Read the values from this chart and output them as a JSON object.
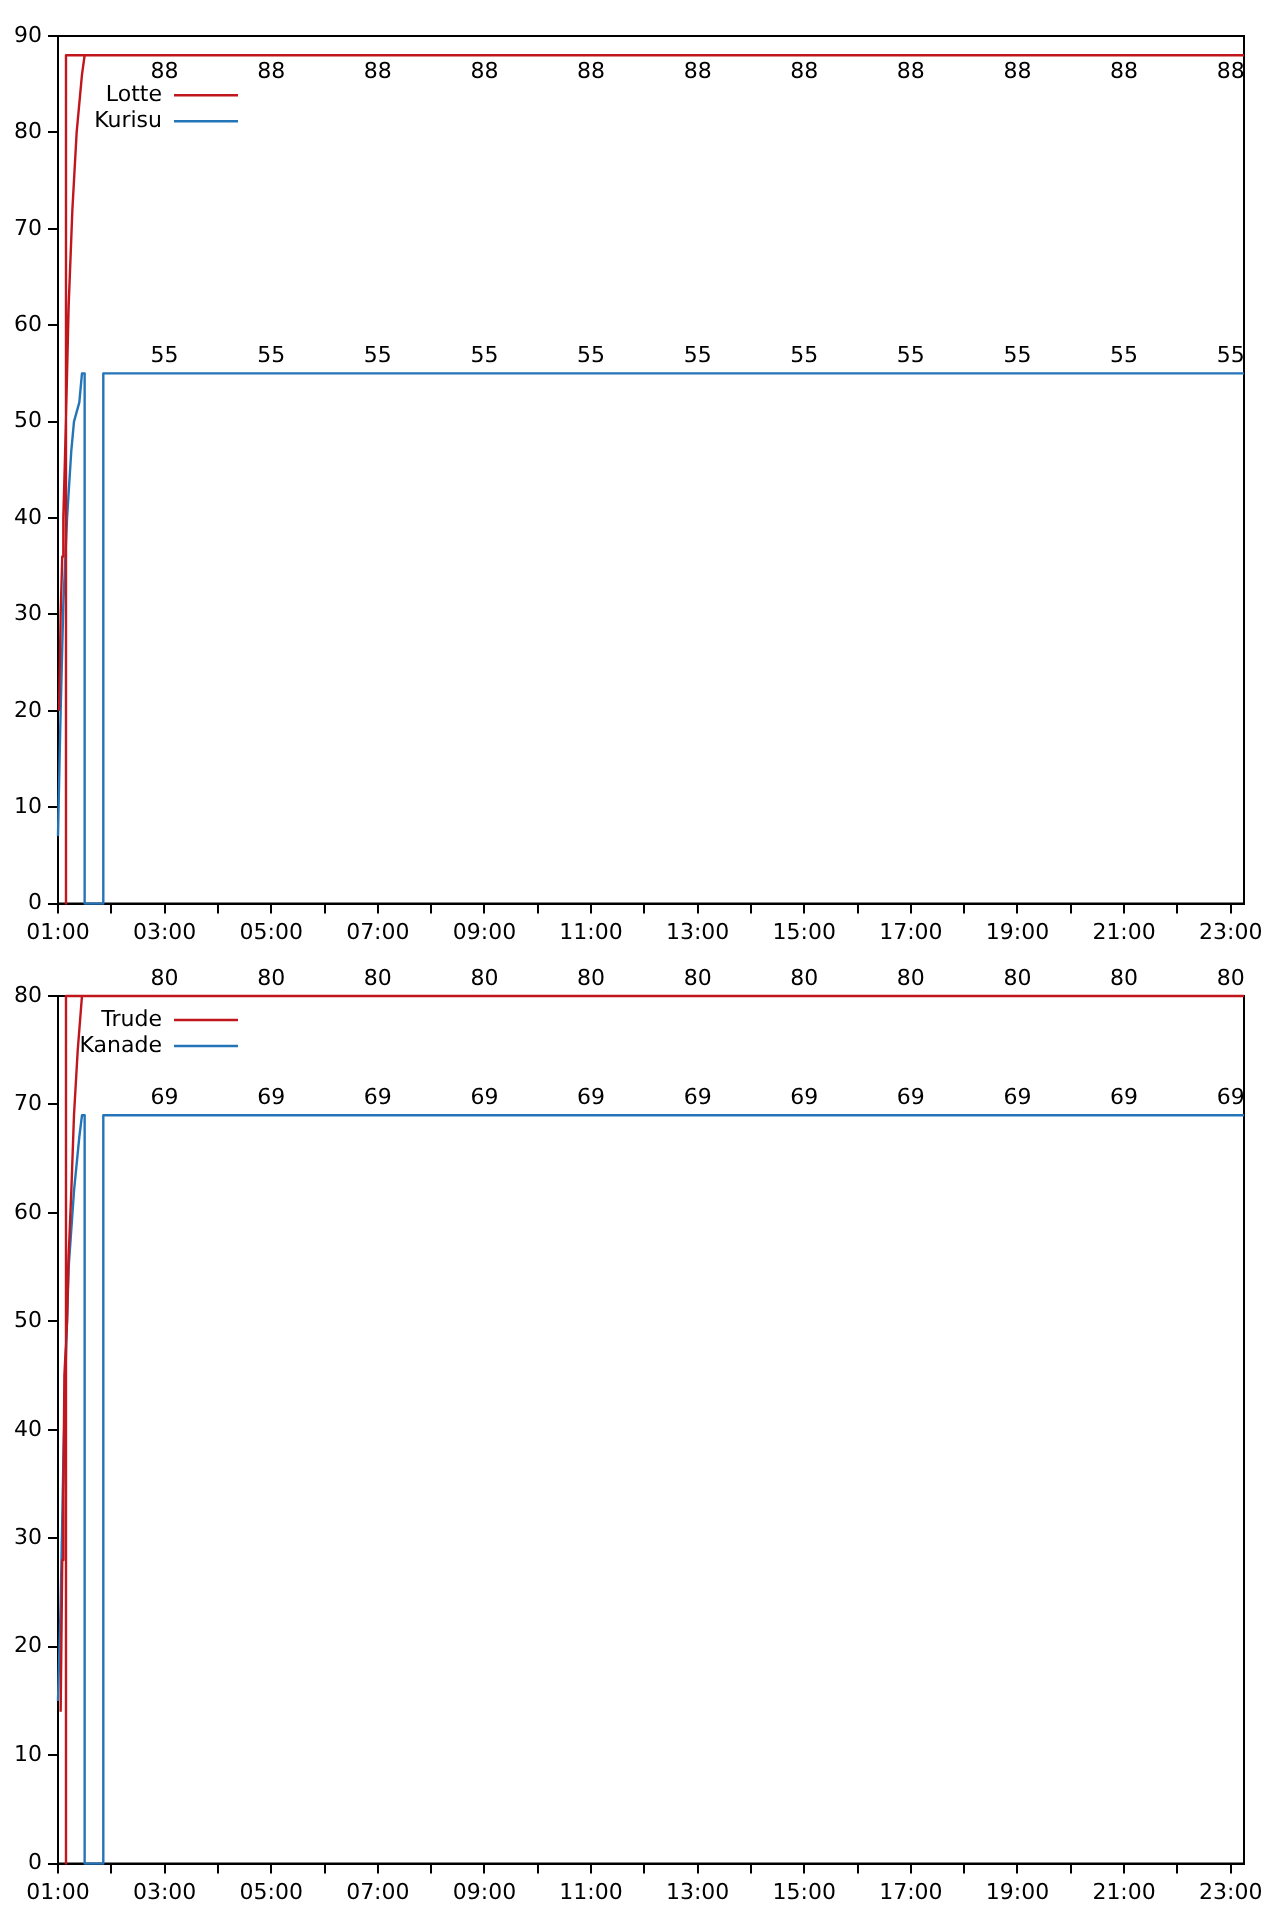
{
  "chart_data": [
    {
      "type": "line",
      "legend": "top left",
      "xlim": [
        1,
        23.25
      ],
      "ylim": [
        0,
        90
      ],
      "xticks": [
        {
          "value": 1,
          "label": "01:00"
        },
        {
          "value": 2,
          "label": null
        },
        {
          "value": 3,
          "label": "03:00"
        },
        {
          "value": 4,
          "label": null
        },
        {
          "value": 5,
          "label": "05:00"
        },
        {
          "value": 6,
          "label": null
        },
        {
          "value": 7,
          "label": "07:00"
        },
        {
          "value": 8,
          "label": null
        },
        {
          "value": 9,
          "label": "09:00"
        },
        {
          "value": 10,
          "label": null
        },
        {
          "value": 11,
          "label": "11:00"
        },
        {
          "value": 12,
          "label": null
        },
        {
          "value": 13,
          "label": "13:00"
        },
        {
          "value": 14,
          "label": null
        },
        {
          "value": 15,
          "label": "15:00"
        },
        {
          "value": 16,
          "label": null
        },
        {
          "value": 17,
          "label": "17:00"
        },
        {
          "value": 18,
          "label": null
        },
        {
          "value": 19,
          "label": "19:00"
        },
        {
          "value": 20,
          "label": null
        },
        {
          "value": 21,
          "label": "21:00"
        },
        {
          "value": 22,
          "label": null
        },
        {
          "value": 23,
          "label": "23:00"
        }
      ],
      "yticks": [
        0,
        10,
        20,
        30,
        40,
        50,
        60,
        70,
        80,
        90
      ],
      "series": [
        {
          "name": "Lotte",
          "color": "#c0161c",
          "x": [
            1.02,
            1.05,
            1.08,
            1.1,
            1.13,
            1.17,
            1.2,
            1.27,
            1.35,
            1.45,
            1.5,
            1.15,
            1.15,
            1.15,
            3,
            5,
            7,
            9,
            11,
            13,
            15,
            17,
            19,
            21,
            23,
            23.25
          ],
          "values": [
            20,
            30,
            36,
            40,
            46,
            55,
            62,
            72,
            80,
            86,
            88,
            88,
            0,
            88,
            88,
            88,
            88,
            88,
            88,
            88,
            88,
            88,
            88,
            88,
            88,
            88
          ],
          "value_labels": [
            null,
            null,
            null,
            null,
            null,
            null,
            null,
            null,
            null,
            null,
            null,
            null,
            null,
            null,
            "88",
            "88",
            "88",
            "88",
            "88",
            "88",
            "88",
            "88",
            "88",
            "88",
            "88",
            null
          ]
        },
        {
          "name": "Kurisu",
          "color": "#2474b8",
          "x": [
            1.0,
            1.03,
            1.05,
            1.1,
            1.17,
            1.25,
            1.3,
            1.4,
            1.45,
            1.5,
            1.5,
            1.85,
            1.85,
            3,
            5,
            7,
            9,
            11,
            13,
            15,
            17,
            19,
            21,
            23,
            23.25
          ],
          "values": [
            7,
            15,
            20,
            31,
            40,
            47,
            50,
            52,
            55,
            55,
            0,
            0,
            55,
            55,
            55,
            55,
            55,
            55,
            55,
            55,
            55,
            55,
            55,
            55,
            55
          ],
          "value_labels": [
            null,
            null,
            null,
            null,
            null,
            null,
            null,
            null,
            null,
            null,
            null,
            null,
            null,
            "55",
            "55",
            "55",
            "55",
            "55",
            "55",
            "55",
            "55",
            "55",
            "55",
            "55",
            null
          ]
        }
      ]
    },
    {
      "type": "line",
      "legend": "top left",
      "xlim": [
        1,
        23.25
      ],
      "ylim": [
        0,
        80
      ],
      "xticks": [
        {
          "value": 1,
          "label": "01:00"
        },
        {
          "value": 2,
          "label": null
        },
        {
          "value": 3,
          "label": "03:00"
        },
        {
          "value": 4,
          "label": null
        },
        {
          "value": 5,
          "label": "05:00"
        },
        {
          "value": 6,
          "label": null
        },
        {
          "value": 7,
          "label": "07:00"
        },
        {
          "value": 8,
          "label": null
        },
        {
          "value": 9,
          "label": "09:00"
        },
        {
          "value": 10,
          "label": null
        },
        {
          "value": 11,
          "label": "11:00"
        },
        {
          "value": 12,
          "label": null
        },
        {
          "value": 13,
          "label": "13:00"
        },
        {
          "value": 14,
          "label": null
        },
        {
          "value": 15,
          "label": "15:00"
        },
        {
          "value": 16,
          "label": null
        },
        {
          "value": 17,
          "label": "17:00"
        },
        {
          "value": 18,
          "label": null
        },
        {
          "value": 19,
          "label": "19:00"
        },
        {
          "value": 20,
          "label": null
        },
        {
          "value": 21,
          "label": "21:00"
        },
        {
          "value": 22,
          "label": null
        },
        {
          "value": 23,
          "label": "23:00"
        }
      ],
      "yticks": [
        0,
        10,
        20,
        30,
        40,
        50,
        60,
        70,
        80
      ],
      "series": [
        {
          "name": "Trude",
          "color": "#c0161c",
          "x": [
            1.05,
            1.08,
            1.1,
            1.12,
            1.17,
            1.2,
            1.25,
            1.3,
            1.37,
            1.45,
            1.15,
            1.15,
            1.15,
            3,
            5,
            7,
            9,
            11,
            13,
            15,
            17,
            19,
            21,
            23,
            23.25
          ],
          "values": [
            14,
            28,
            34,
            45,
            50,
            56,
            62,
            69,
            75,
            80,
            80,
            0,
            80,
            80,
            80,
            80,
            80,
            80,
            80,
            80,
            80,
            80,
            80,
            80,
            80
          ],
          "value_labels": [
            null,
            null,
            null,
            null,
            null,
            null,
            null,
            null,
            null,
            null,
            null,
            null,
            null,
            "80",
            "80",
            "80",
            "80",
            "80",
            "80",
            "80",
            "80",
            "80",
            "80",
            "80",
            null
          ]
        },
        {
          "name": "Kanade",
          "color": "#2474b8",
          "x": [
            1.0,
            1.05,
            1.1,
            1.15,
            1.2,
            1.3,
            1.4,
            1.45,
            1.5,
            1.5,
            1.85,
            1.85,
            3,
            5,
            7,
            9,
            11,
            13,
            15,
            17,
            19,
            21,
            23,
            23.25
          ],
          "values": [
            15,
            24,
            37,
            47,
            55,
            62,
            67,
            69,
            69,
            0,
            0,
            69,
            69,
            69,
            69,
            69,
            69,
            69,
            69,
            69,
            69,
            69,
            69,
            69
          ],
          "value_labels": [
            null,
            null,
            null,
            null,
            null,
            null,
            null,
            null,
            null,
            null,
            null,
            null,
            "69",
            "69",
            "69",
            "69",
            "69",
            "69",
            "69",
            "69",
            "69",
            "69",
            "69",
            null
          ]
        }
      ]
    }
  ]
}
